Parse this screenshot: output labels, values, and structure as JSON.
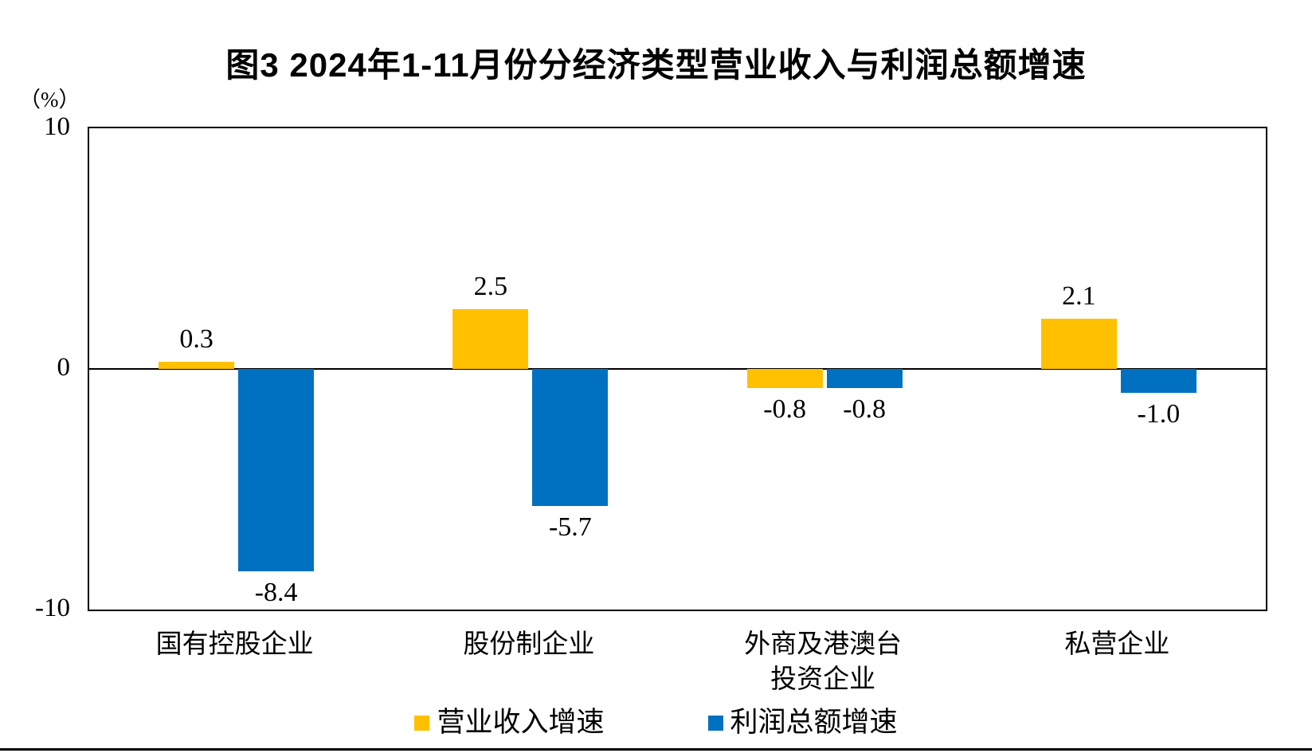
{
  "title": "图3 2024年1-11月份分经济类型营业收入与利润总额增速",
  "y_axis_unit": "（%）",
  "chart_data": {
    "type": "bar",
    "categories": [
      "国有控股企业",
      "股份制企业",
      "外商及港澳台\n投资企业",
      "私营企业"
    ],
    "series": [
      {
        "name": "营业收入增速",
        "color": "#FFC000",
        "values": [
          0.3,
          2.5,
          -0.8,
          2.1
        ],
        "labels": [
          "0.3",
          "2.5",
          "-0.8",
          "2.1"
        ]
      },
      {
        "name": "利润总额增速",
        "color": "#0070C0",
        "values": [
          -8.4,
          -5.7,
          -0.8,
          -1.0
        ],
        "labels": [
          "-8.4",
          "-5.7",
          "-0.8",
          "-1.0"
        ]
      }
    ],
    "ylim": [
      -10,
      10
    ],
    "yticks": [
      10,
      0,
      -10
    ],
    "grid": false,
    "legend_position": "bottom",
    "axis_color": "#000000",
    "background_color": "#FFFFFF"
  }
}
